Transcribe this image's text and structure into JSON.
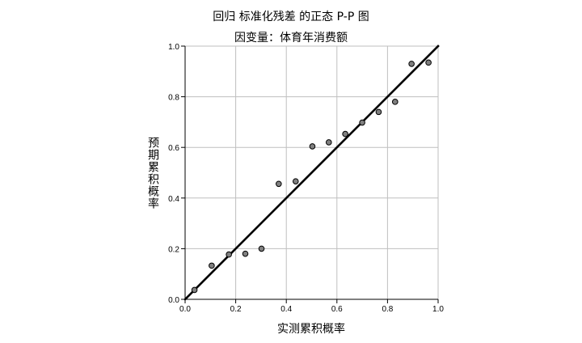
{
  "chart_data": {
    "type": "scatter",
    "title": "回归 标准化残差 的正态 P-P 图",
    "subtitle": "因变量：体育年消费额",
    "xlabel": "实测累积概率",
    "ylabel": "预期累积概率",
    "xlim": [
      0.0,
      1.0
    ],
    "ylim": [
      0.0,
      1.0
    ],
    "xticks": [
      "0.0",
      "0.2",
      "0.4",
      "0.6",
      "0.8",
      "1.0"
    ],
    "yticks": [
      "0.0",
      "0.2",
      "0.4",
      "0.6",
      "0.8",
      "1.0"
    ],
    "grid": true,
    "reference_line": {
      "from": [
        0.0,
        0.0
      ],
      "to": [
        1.0,
        1.0
      ]
    },
    "points": [
      {
        "x": 0.037,
        "y": 0.037
      },
      {
        "x": 0.105,
        "y": 0.133
      },
      {
        "x": 0.173,
        "y": 0.177
      },
      {
        "x": 0.238,
        "y": 0.18
      },
      {
        "x": 0.302,
        "y": 0.2
      },
      {
        "x": 0.37,
        "y": 0.456
      },
      {
        "x": 0.437,
        "y": 0.466
      },
      {
        "x": 0.503,
        "y": 0.604
      },
      {
        "x": 0.568,
        "y": 0.62
      },
      {
        "x": 0.633,
        "y": 0.653
      },
      {
        "x": 0.7,
        "y": 0.698
      },
      {
        "x": 0.765,
        "y": 0.74
      },
      {
        "x": 0.83,
        "y": 0.78
      },
      {
        "x": 0.895,
        "y": 0.93
      },
      {
        "x": 0.962,
        "y": 0.935
      }
    ],
    "colors": {
      "point_fill": "#808080",
      "point_stroke": "#000000",
      "line": "#000000",
      "grid": "#bfbfbf",
      "axis": "#000000"
    }
  }
}
